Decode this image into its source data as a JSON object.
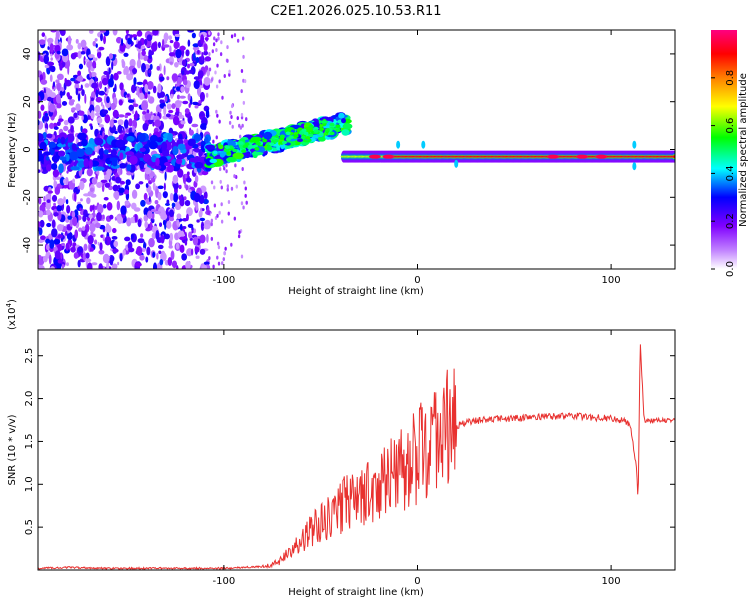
{
  "title": "C2E1.2026.025.10.53.R11",
  "chart_data": [
    {
      "type": "heatmap",
      "xlabel": "Height of straight line (km)",
      "ylabel": "Frequency (Hz)",
      "xlim": [
        -196,
        133
      ],
      "ylim": [
        -50,
        50
      ],
      "xticks": [
        -100,
        0,
        100
      ],
      "xtick_labels": [
        "-100",
        "0",
        "100"
      ],
      "yticks": [
        -40,
        -20,
        0,
        20,
        40
      ],
      "ytick_labels": [
        "-40",
        "-20",
        "0",
        "20",
        "40"
      ],
      "description_regions": [
        {
          "x_range": [
            -196,
            -108
          ],
          "freq_range": [
            -50,
            50
          ],
          "amplitude": "low-medium scattered"
        },
        {
          "x_range": [
            -108,
            -38
          ],
          "freq_trend": [
            -5,
            15
          ],
          "amplitude": "medium rising band"
        },
        {
          "x_range": [
            -38,
            133
          ],
          "freq_center": -3,
          "amplitude": "high narrow band"
        }
      ],
      "colorbar": {
        "label": "Normalized spectral amplitude",
        "range": [
          0,
          1
        ],
        "ticks": [
          0.0,
          0.2,
          0.4,
          0.6,
          0.8
        ],
        "tick_labels": [
          "0.0",
          "0.2",
          "0.4",
          "0.6",
          "0.8"
        ],
        "colors": [
          "#ffffff",
          "#8000ff",
          "#0000ff",
          "#00ffff",
          "#00ff00",
          "#ffff00",
          "#ff8000",
          "#ff0000",
          "#ff0080"
        ]
      }
    },
    {
      "type": "line",
      "xlabel": "Height of straight line (km)",
      "ylabel": "SNR (10 * v/v)",
      "y_multiplier": "(x10",
      "y_multiplier_exp": "4",
      "y_multiplier_close": ")",
      "xlim": [
        -196,
        133
      ],
      "ylim": [
        0,
        2.8
      ],
      "xticks": [
        -100,
        0,
        100
      ],
      "xtick_labels": [
        "-100",
        "0",
        "100"
      ],
      "yticks": [
        0.5,
        1.0,
        1.5,
        2.0,
        2.5
      ],
      "ytick_labels": [
        "0.5",
        "1.0",
        "1.5",
        "2.0",
        "2.5"
      ],
      "color": "#e8312f",
      "series": [
        {
          "name": "SNR",
          "x": [
            -196,
            -180,
            -160,
            -140,
            -120,
            -100,
            -90,
            -80,
            -75,
            -70,
            -65,
            -60,
            -55,
            -50,
            -45,
            -40,
            -35,
            -30,
            -25,
            -20,
            -15,
            -10,
            -5,
            0,
            5,
            10,
            15,
            20,
            25,
            30,
            35,
            40,
            50,
            60,
            70,
            80,
            90,
            100,
            105,
            110,
            113,
            114,
            115,
            117,
            120,
            125,
            133
          ],
          "y": [
            0.02,
            0.03,
            0.02,
            0.02,
            0.02,
            0.02,
            0.03,
            0.04,
            0.06,
            0.12,
            0.25,
            0.35,
            0.45,
            0.55,
            0.65,
            0.75,
            0.85,
            0.9,
            0.95,
            1.0,
            1.05,
            1.1,
            1.2,
            1.35,
            1.45,
            1.55,
            1.62,
            1.68,
            1.72,
            1.74,
            1.75,
            1.76,
            1.77,
            1.78,
            1.79,
            1.8,
            1.78,
            1.77,
            1.75,
            1.7,
            1.2,
            0.8,
            2.7,
            1.75,
            1.74,
            1.75,
            1.74
          ]
        }
      ]
    }
  ]
}
